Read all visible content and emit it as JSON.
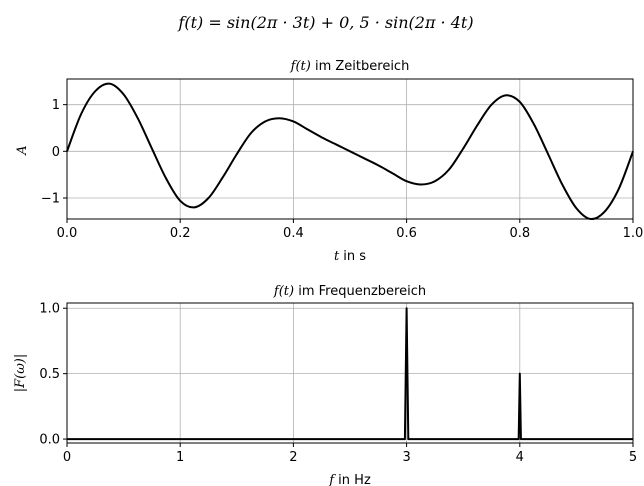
{
  "suptitle": {
    "pre": "f(t) = sin(2π · 3t) + 0, 5 · sin(2π · 4t)"
  },
  "chart_data": [
    {
      "type": "line",
      "title_math": "f(t)",
      "title_rest": " im Zeitbereich",
      "xlabel_math": "t",
      "xlabel_rest": " in s",
      "ylabel": "A",
      "xlim": [
        0,
        1
      ],
      "ylim": [
        -1.45,
        1.55
      ],
      "xticks": [
        "0.0",
        "0.2",
        "0.4",
        "0.6",
        "0.8",
        "1.0"
      ],
      "xtick_values": [
        0,
        0.2,
        0.4,
        0.6,
        0.8,
        1.0
      ],
      "yticks": [
        "1",
        "0",
        "−1"
      ],
      "ytick_values": [
        1,
        0,
        -1
      ],
      "grid": true,
      "series": [
        {
          "color": "#000000",
          "x": [
            0,
            0.025,
            0.05,
            0.075,
            0.1,
            0.125,
            0.15,
            0.175,
            0.2,
            0.225,
            0.25,
            0.275,
            0.3,
            0.325,
            0.35,
            0.375,
            0.4,
            0.425,
            0.45,
            0.475,
            0.5,
            0.525,
            0.55,
            0.575,
            0.6,
            0.625,
            0.65,
            0.675,
            0.7,
            0.725,
            0.75,
            0.775,
            0.8,
            0.825,
            0.85,
            0.875,
            0.9,
            0.925,
            0.95,
            0.975,
            1.0
          ],
          "y": [
            0,
            0.8,
            1.29,
            1.45,
            1.22,
            0.71,
            0.06,
            -0.58,
            -1.06,
            -1.2,
            -1.0,
            -0.56,
            -0.06,
            0.39,
            0.64,
            0.71,
            0.64,
            0.47,
            0.3,
            0.15,
            0.0,
            -0.15,
            -0.3,
            -0.47,
            -0.64,
            -0.71,
            -0.64,
            -0.39,
            0.06,
            0.56,
            1.0,
            1.2,
            1.06,
            0.58,
            -0.06,
            -0.71,
            -1.22,
            -1.45,
            -1.29,
            -0.8,
            0
          ]
        }
      ]
    },
    {
      "type": "line",
      "title_math": "f(t)",
      "title_rest": " im Frequenzbereich",
      "xlabel_math": "f",
      "xlabel_rest": " in Hz",
      "ylabel": "|F(ω)|",
      "xlim": [
        0,
        5
      ],
      "ylim": [
        -0.03,
        1.04
      ],
      "xticks": [
        "0",
        "1",
        "2",
        "3",
        "4",
        "5"
      ],
      "xtick_values": [
        0,
        1,
        2,
        3,
        4,
        5
      ],
      "yticks": [
        "1.0",
        "0.5",
        "0.0"
      ],
      "ytick_values": [
        1.0,
        0.5,
        0.0
      ],
      "grid": true,
      "series": [
        {
          "color": "#000000",
          "x": [
            0,
            2.985,
            3.0,
            3.015,
            3.99,
            4.0,
            4.01,
            5.0
          ],
          "y": [
            0,
            0,
            1.0,
            0,
            0,
            0.5,
            0,
            0
          ]
        }
      ]
    }
  ]
}
